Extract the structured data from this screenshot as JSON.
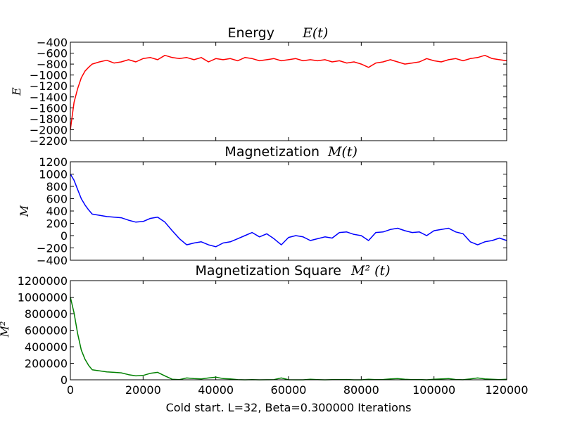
{
  "chart_data": [
    {
      "type": "line",
      "title": "Energy",
      "title_math": "E(t)",
      "ylabel": "E",
      "xlim": [
        0,
        120000
      ],
      "ylim": [
        -2200,
        -400
      ],
      "yticks": [
        -2200,
        -2000,
        -1800,
        -1600,
        -1400,
        -1200,
        -1000,
        -800,
        -600,
        -400
      ],
      "ytick_labels": [
        "−2200",
        "−2000",
        "−1800",
        "−1600",
        "−1400",
        "−1200",
        "−1000",
        "−800",
        "−600",
        "−400"
      ],
      "xticks": [
        0,
        20000,
        40000,
        60000,
        80000,
        100000,
        120000
      ],
      "grid": false,
      "series": [
        {
          "color": "#ff0000",
          "x": [
            0,
            1000,
            2000,
            3000,
            4000,
            5000,
            6000,
            8000,
            10000,
            12000,
            14000,
            16000,
            18000,
            20000,
            22000,
            24000,
            26000,
            28000,
            30000,
            32000,
            34000,
            36000,
            38000,
            40000,
            42000,
            44000,
            46000,
            48000,
            50000,
            52000,
            54000,
            56000,
            58000,
            60000,
            62000,
            64000,
            66000,
            68000,
            70000,
            72000,
            74000,
            76000,
            78000,
            80000,
            82000,
            84000,
            86000,
            88000,
            90000,
            92000,
            94000,
            96000,
            98000,
            100000,
            102000,
            104000,
            106000,
            108000,
            110000,
            112000,
            114000,
            116000,
            118000,
            120000
          ],
          "y": [
            -2000,
            -1500,
            -1250,
            -1050,
            -930,
            -860,
            -800,
            -760,
            -730,
            -780,
            -760,
            -720,
            -760,
            -700,
            -680,
            -720,
            -640,
            -680,
            -700,
            -680,
            -720,
            -680,
            -760,
            -700,
            -720,
            -700,
            -740,
            -680,
            -700,
            -740,
            -720,
            -700,
            -740,
            -720,
            -700,
            -740,
            -720,
            -740,
            -720,
            -760,
            -740,
            -780,
            -760,
            -800,
            -860,
            -780,
            -760,
            -720,
            -760,
            -800,
            -780,
            -760,
            -700,
            -740,
            -760,
            -720,
            -700,
            -740,
            -700,
            -680,
            -640,
            -700,
            -720,
            -740
          ]
        }
      ]
    },
    {
      "type": "line",
      "title": "Magnetization",
      "title_math": "M(t)",
      "ylabel": "M",
      "xlim": [
        0,
        120000
      ],
      "ylim": [
        -400,
        1200
      ],
      "yticks": [
        -400,
        -200,
        0,
        200,
        400,
        600,
        800,
        1000,
        1200
      ],
      "ytick_labels": [
        "−400",
        "−200",
        "0",
        "200",
        "400",
        "600",
        "800",
        "1000",
        "1200"
      ],
      "xticks": [
        0,
        20000,
        40000,
        60000,
        80000,
        100000,
        120000
      ],
      "grid": false,
      "series": [
        {
          "color": "#0000ff",
          "x": [
            0,
            1000,
            2000,
            3000,
            4000,
            5000,
            6000,
            8000,
            10000,
            12000,
            14000,
            16000,
            18000,
            20000,
            22000,
            24000,
            26000,
            28000,
            30000,
            32000,
            34000,
            36000,
            38000,
            40000,
            42000,
            44000,
            46000,
            48000,
            50000,
            52000,
            54000,
            56000,
            58000,
            60000,
            62000,
            64000,
            66000,
            68000,
            70000,
            72000,
            74000,
            76000,
            78000,
            80000,
            82000,
            84000,
            86000,
            88000,
            90000,
            92000,
            94000,
            96000,
            98000,
            100000,
            102000,
            104000,
            106000,
            108000,
            110000,
            112000,
            114000,
            116000,
            118000,
            120000
          ],
          "y": [
            1000,
            900,
            750,
            600,
            500,
            420,
            350,
            330,
            310,
            300,
            290,
            250,
            220,
            230,
            280,
            300,
            220,
            80,
            -50,
            -150,
            -120,
            -100,
            -150,
            -180,
            -120,
            -100,
            -50,
            0,
            50,
            -20,
            30,
            -50,
            -150,
            -30,
            0,
            -20,
            -80,
            -50,
            -20,
            -40,
            50,
            60,
            20,
            0,
            -80,
            50,
            60,
            100,
            120,
            80,
            50,
            60,
            0,
            80,
            100,
            120,
            60,
            30,
            -100,
            -150,
            -100,
            -80,
            -40,
            -80
          ]
        }
      ]
    },
    {
      "type": "line",
      "title": "Magnetization Square",
      "title_math": "M² (t)",
      "ylabel": "M²",
      "xlabel": "Cold start. L=32, Beta=0.300000 Iterations",
      "xlim": [
        0,
        120000
      ],
      "ylim": [
        0,
        1200000
      ],
      "yticks": [
        0,
        200000,
        400000,
        600000,
        800000,
        1000000,
        1200000
      ],
      "ytick_labels": [
        "0",
        "200000",
        "400000",
        "600000",
        "800000",
        "1000000",
        "1200000"
      ],
      "xticks": [
        0,
        20000,
        40000,
        60000,
        80000,
        100000,
        120000
      ],
      "xtick_labels": [
        "0",
        "20000",
        "40000",
        "60000",
        "80000",
        "100000",
        "120000"
      ],
      "grid": false,
      "series": [
        {
          "color": "#008000",
          "x": [
            0,
            1000,
            2000,
            3000,
            4000,
            5000,
            6000,
            8000,
            10000,
            12000,
            14000,
            16000,
            18000,
            20000,
            22000,
            24000,
            26000,
            28000,
            30000,
            32000,
            34000,
            36000,
            38000,
            40000,
            42000,
            44000,
            46000,
            48000,
            50000,
            52000,
            54000,
            56000,
            58000,
            60000,
            62000,
            64000,
            66000,
            68000,
            70000,
            72000,
            74000,
            76000,
            78000,
            80000,
            82000,
            84000,
            86000,
            88000,
            90000,
            92000,
            94000,
            96000,
            98000,
            100000,
            102000,
            104000,
            106000,
            108000,
            110000,
            112000,
            114000,
            116000,
            118000,
            120000
          ],
          "y": [
            1000000,
            810000,
            560000,
            360000,
            250000,
            176000,
            122000,
            109000,
            96000,
            90000,
            84000,
            62000,
            48000,
            53000,
            78000,
            90000,
            48000,
            6400,
            2500,
            22500,
            14400,
            10000,
            22500,
            32400,
            14400,
            10000,
            2500,
            0,
            2500,
            400,
            900,
            2500,
            22500,
            900,
            0,
            400,
            6400,
            2500,
            400,
            1600,
            2500,
            3600,
            400,
            0,
            6400,
            2500,
            3600,
            10000,
            14400,
            6400,
            2500,
            3600,
            0,
            6400,
            10000,
            14400,
            3600,
            900,
            10000,
            22500,
            10000,
            6400,
            1600,
            6400
          ]
        }
      ]
    }
  ]
}
